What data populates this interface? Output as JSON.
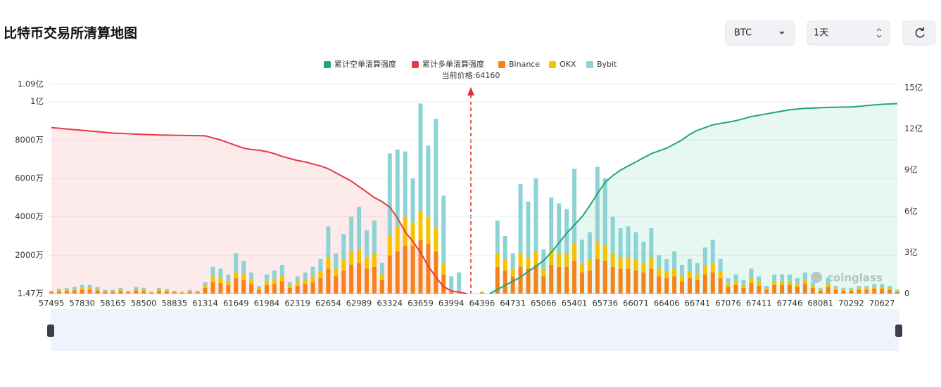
{
  "header": {
    "title": "比特币交易所清算地图",
    "selects": [
      "BTC",
      "1天"
    ]
  },
  "chart_data": {
    "type": "bar",
    "stacked": true,
    "annotation": "当前价格:64160",
    "watermark": "coinglass",
    "categories": [
      "57495",
      null,
      null,
      null,
      "57830",
      null,
      null,
      null,
      "58165",
      null,
      null,
      null,
      "58500",
      null,
      null,
      null,
      "58835",
      null,
      null,
      null,
      "61314",
      null,
      null,
      null,
      "61649",
      null,
      null,
      null,
      "61984",
      null,
      null,
      null,
      "62319",
      null,
      null,
      null,
      "62654",
      null,
      null,
      null,
      "62989",
      null,
      null,
      null,
      "63324",
      null,
      null,
      null,
      "63659",
      null,
      null,
      null,
      "63994",
      null,
      null,
      null,
      "64396",
      null,
      null,
      null,
      "64731",
      null,
      null,
      null,
      "65066",
      null,
      null,
      null,
      "65401",
      null,
      null,
      null,
      "65736",
      null,
      null,
      null,
      "66071",
      null,
      null,
      null,
      "66406",
      null,
      null,
      null,
      "66741",
      null,
      null,
      null,
      "67076",
      null,
      null,
      null,
      "67411",
      null,
      null,
      null,
      "67746",
      null,
      null,
      null,
      "68081",
      null,
      null,
      null,
      "70292",
      null,
      null,
      null,
      "70627",
      null,
      null
    ],
    "series": [
      {
        "name": "累计空单清算强度",
        "type": "line",
        "axis": "y2",
        "color": "#1fa67a",
        "area": "rgba(40,180,130,0.11)",
        "values": [
          null,
          null,
          null,
          null,
          null,
          null,
          null,
          null,
          null,
          null,
          null,
          null,
          null,
          null,
          null,
          null,
          null,
          null,
          null,
          null,
          null,
          null,
          null,
          null,
          null,
          null,
          null,
          null,
          null,
          null,
          null,
          null,
          null,
          null,
          null,
          null,
          null,
          null,
          null,
          null,
          null,
          null,
          null,
          null,
          null,
          null,
          null,
          null,
          null,
          null,
          null,
          null,
          null,
          null,
          null,
          null,
          null,
          0,
          0.3,
          0.6,
          0.9,
          1.2,
          1.6,
          2.0,
          2.4,
          3.0,
          3.7,
          4.4,
          5.0,
          5.6,
          6.4,
          7.3,
          8.1,
          8.6,
          9.0,
          9.3,
          9.6,
          9.9,
          10.2,
          10.4,
          10.6,
          10.9,
          11.2,
          11.6,
          11.9,
          12.1,
          12.3,
          12.4,
          12.5,
          12.6,
          12.75,
          12.9,
          13.0,
          13.1,
          13.2,
          13.3,
          13.4,
          13.45,
          13.5,
          13.52,
          13.55,
          13.57,
          13.58,
          13.6,
          13.6,
          13.65,
          13.7,
          13.75,
          13.8,
          13.82,
          13.85
        ]
      },
      {
        "name": "累计多单清算强度",
        "type": "line",
        "axis": "y2",
        "color": "#e63946",
        "area": "rgba(240,90,100,0.13)",
        "values": [
          12.1,
          12.05,
          12.0,
          11.95,
          11.9,
          11.85,
          11.8,
          11.75,
          11.7,
          11.68,
          11.65,
          11.62,
          11.6,
          11.58,
          11.56,
          11.55,
          11.54,
          11.53,
          11.52,
          11.51,
          11.5,
          11.35,
          11.2,
          11.0,
          10.8,
          10.6,
          10.5,
          10.45,
          10.35,
          10.2,
          10.0,
          9.85,
          9.7,
          9.6,
          9.45,
          9.3,
          9.1,
          8.8,
          8.5,
          8.2,
          7.8,
          7.4,
          7.0,
          6.7,
          6.3,
          5.5,
          4.5,
          3.8,
          3.0,
          2.0,
          1.2,
          0.5,
          0.2,
          0.1,
          0,
          null,
          null,
          null,
          null,
          null,
          null,
          null,
          null,
          null,
          null,
          null,
          null,
          null,
          null,
          null,
          null,
          null,
          null,
          null,
          null,
          null,
          null,
          null,
          null,
          null,
          null,
          null,
          null,
          null,
          null,
          null,
          null,
          null,
          null,
          null,
          null,
          null,
          null,
          null,
          null,
          null,
          null,
          null,
          null,
          null,
          null,
          null,
          null,
          null,
          null,
          null,
          null,
          null,
          null,
          null,
          null
        ]
      },
      {
        "name": "Binance",
        "type": "bar",
        "color": "#f7821b",
        "values": [
          70,
          120,
          150,
          170,
          200,
          200,
          160,
          100,
          100,
          150,
          70,
          170,
          140,
          50,
          140,
          120,
          70,
          50,
          100,
          70,
          300,
          600,
          550,
          450,
          800,
          700,
          500,
          200,
          450,
          500,
          650,
          300,
          400,
          500,
          600,
          800,
          1300,
          900,
          1200,
          1500,
          1600,
          1300,
          1400,
          700,
          2000,
          2200,
          2500,
          2500,
          2800,
          2600,
          2200,
          1000,
          100,
          0,
          0,
          0,
          50,
          0,
          1400,
          1200,
          900,
          1400,
          1300,
          1500,
          900,
          1500,
          1400,
          1400,
          1700,
          1100,
          1200,
          1800,
          1700,
          1400,
          1300,
          1300,
          1200,
          1100,
          1300,
          900,
          800,
          900,
          650,
          800,
          700,
          1000,
          1100,
          800,
          350,
          450,
          300,
          550,
          400,
          200,
          450,
          450,
          450,
          350,
          500,
          300,
          150,
          350,
          200,
          150,
          150,
          200,
          200,
          250,
          250,
          200,
          100
        ]
      },
      {
        "name": "OKX",
        "type": "bar",
        "color": "#f5c300",
        "values": [
          30,
          50,
          60,
          70,
          80,
          90,
          70,
          40,
          40,
          50,
          30,
          70,
          60,
          20,
          60,
          50,
          30,
          20,
          40,
          30,
          120,
          300,
          250,
          200,
          300,
          300,
          200,
          80,
          200,
          250,
          300,
          100,
          200,
          200,
          300,
          350,
          600,
          400,
          600,
          700,
          700,
          600,
          700,
          300,
          1000,
          1300,
          1500,
          1200,
          1500,
          1400,
          1200,
          600,
          50,
          0,
          0,
          0,
          20,
          0,
          700,
          600,
          400,
          700,
          600,
          700,
          400,
          800,
          700,
          700,
          900,
          500,
          600,
          900,
          800,
          700,
          600,
          600,
          600,
          500,
          600,
          400,
          350,
          400,
          300,
          350,
          300,
          450,
          500,
          350,
          150,
          200,
          150,
          250,
          200,
          80,
          200,
          200,
          200,
          150,
          200,
          100,
          50,
          150,
          80,
          50,
          50,
          80,
          80,
          100,
          100,
          80,
          40
        ]
      },
      {
        "name": "Bybit",
        "type": "bar",
        "color": "#8dd3d5",
        "values": [
          50,
          80,
          90,
          110,
          170,
          160,
          120,
          60,
          60,
          100,
          50,
          110,
          100,
          30,
          100,
          80,
          50,
          30,
          60,
          50,
          180,
          500,
          500,
          350,
          1000,
          700,
          400,
          120,
          350,
          450,
          550,
          200,
          300,
          400,
          500,
          650,
          1600,
          800,
          1300,
          1800,
          2200,
          1400,
          1700,
          600,
          4300,
          4000,
          3400,
          2300,
          5600,
          3700,
          5700,
          3500,
          750,
          1100,
          0,
          0,
          30,
          0,
          1700,
          1200,
          800,
          3600,
          2900,
          3800,
          1000,
          2700,
          2600,
          2300,
          3900,
          1200,
          1400,
          3900,
          3500,
          1900,
          1500,
          1600,
          1400,
          1100,
          1500,
          700,
          650,
          900,
          550,
          650,
          600,
          950,
          1200,
          650,
          300,
          350,
          250,
          500,
          300,
          120,
          350,
          350,
          350,
          300,
          400,
          200,
          100,
          300,
          120,
          100,
          100,
          120,
          120,
          150,
          150,
          120,
          60
        ]
      }
    ],
    "ylim": [
      1.47,
      10900
    ],
    "yticks": [
      {
        "value": 1.47,
        "label": "1.47万"
      },
      {
        "value": 2000,
        "label": "2000万"
      },
      {
        "value": 4000,
        "label": "4000万"
      },
      {
        "value": 6000,
        "label": "6000万"
      },
      {
        "value": 8000,
        "label": "8000万"
      },
      {
        "value": 10000,
        "label": "1亿"
      },
      {
        "value": 10900,
        "label": "1.09亿"
      }
    ],
    "y2lim": [
      0,
      15
    ],
    "y2ticks": [
      0,
      {
        "value": 3,
        "label": "3亿"
      },
      {
        "value": 6,
        "label": "6亿"
      },
      {
        "value": 9,
        "label": "9亿"
      },
      {
        "value": 12,
        "label": "12亿"
      },
      {
        "value": 15,
        "label": "15亿"
      }
    ],
    "grid": true
  }
}
